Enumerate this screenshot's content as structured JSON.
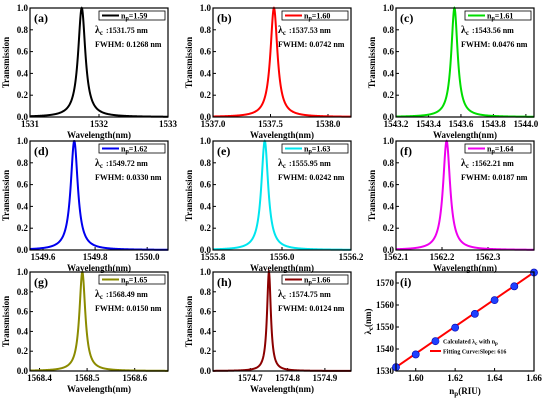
{
  "chart_data": [
    {
      "type": "line",
      "label": "(a)",
      "color": "#000000",
      "n_label": "n",
      "n_sub": "p",
      "n_value": "=1.59",
      "lambda_sym": "λ",
      "lambda_sub": "c",
      "lambda_value": ":1531.75 nm",
      "fwhm_text": "FWHM: 0.1268 nm",
      "center": 1531.75,
      "fwhm": 0.1268,
      "xlim": [
        1531,
        1533
      ],
      "ylim": [
        0,
        1.0
      ],
      "xticks": [
        1531,
        1532,
        1533
      ],
      "xtick_labels": [
        "1531",
        "1532",
        "1533"
      ],
      "yticks": [
        0,
        0.2,
        0.4,
        0.6,
        0.8,
        1.0
      ],
      "ytick_labels": [
        "0.0",
        "0.2",
        "0.4",
        "0.6",
        "0.8",
        "1.0"
      ],
      "xlabel": "Wavelength(nm)",
      "ylabel": "Transmission"
    },
    {
      "type": "line",
      "label": "(b)",
      "color": "#ff0000",
      "n_label": "n",
      "n_sub": "p",
      "n_value": "=1.60",
      "lambda_sym": "λ",
      "lambda_sub": "c",
      "lambda_value": ":1537.53 nm",
      "fwhm_text": "FWHM: 0.0742 nm",
      "center": 1537.53,
      "fwhm": 0.0742,
      "xlim": [
        1537.0,
        1538.2
      ],
      "ylim": [
        0,
        1.0
      ],
      "xticks": [
        1537.0,
        1537.5,
        1538.0
      ],
      "xtick_labels": [
        "1537.0",
        "1537.5",
        "1538.0"
      ],
      "yticks": [
        0,
        0.2,
        0.4,
        0.6,
        0.8,
        1.0
      ],
      "ytick_labels": [
        "0.0",
        "0.2",
        "0.4",
        "0.6",
        "0.8",
        "1.0"
      ],
      "xlabel": "Wavelength(nm)",
      "ylabel": "Transmission"
    },
    {
      "type": "line",
      "label": "(c)",
      "color": "#00dd00",
      "n_label": "n",
      "n_sub": "p",
      "n_value": "=1.61",
      "lambda_sym": "λ",
      "lambda_sub": "c",
      "lambda_value": ":1543.56 nm",
      "fwhm_text": "FWHM: 0.0476 nm",
      "center": 1543.56,
      "fwhm": 0.0476,
      "xlim": [
        1543.2,
        1544.05
      ],
      "ylim": [
        0,
        1.0
      ],
      "xticks": [
        1543.2,
        1543.4,
        1543.6,
        1543.8,
        1544.0
      ],
      "xtick_labels": [
        "1543.2",
        "1543.4",
        "1543.6",
        "1543.8",
        "1544.0"
      ],
      "yticks": [
        0,
        0.2,
        0.4,
        0.6,
        0.8,
        1.0
      ],
      "ytick_labels": [
        "0.0",
        "0.2",
        "0.4",
        "0.6",
        "0.8",
        "1.0"
      ],
      "xlabel": "Wavelength(nm)",
      "ylabel": "Transmission"
    },
    {
      "type": "line",
      "label": "(d)",
      "color": "#0000ee",
      "n_label": "n",
      "n_sub": "p",
      "n_value": "=1.62",
      "lambda_sym": "λ",
      "lambda_sub": "c",
      "lambda_value": ":1549.72 nm",
      "fwhm_text": "FWHM: 0.0330 nm",
      "center": 1549.72,
      "fwhm": 0.033,
      "xlim": [
        1549.55,
        1550.08
      ],
      "ylim": [
        0,
        1.0
      ],
      "xticks": [
        1549.6,
        1549.8,
        1550.0
      ],
      "xtick_labels": [
        "1549.6",
        "1549.8",
        "1550.0"
      ],
      "yticks": [
        0,
        0.2,
        0.4,
        0.6,
        0.8,
        1.0
      ],
      "ytick_labels": [
        "0.0",
        "0.2",
        "0.4",
        "0.6",
        "0.8",
        "1.0"
      ],
      "xlabel": "Wavelength(nm)",
      "ylabel": "Transmission"
    },
    {
      "type": "line",
      "label": "(e)",
      "color": "#00e5ee",
      "n_label": "n",
      "n_sub": "p",
      "n_value": "=1.63",
      "lambda_sym": "λ",
      "lambda_sub": "c",
      "lambda_value": ":1555.95 nm",
      "fwhm_text": "FWHM: 0.0242 nm",
      "center": 1555.95,
      "fwhm": 0.0242,
      "xlim": [
        1555.8,
        1556.2
      ],
      "ylim": [
        0,
        1.0
      ],
      "xticks": [
        1555.8,
        1556.0,
        1556.2
      ],
      "xtick_labels": [
        "1555.8",
        "1556.0",
        "1556.2"
      ],
      "yticks": [
        0,
        0.2,
        0.4,
        0.6,
        0.8,
        1.0
      ],
      "ytick_labels": [
        "0.0",
        "0.2",
        "0.4",
        "0.6",
        "0.8",
        "1.0"
      ],
      "xlabel": "Wavelength(nm)",
      "ylabel": "Transmission"
    },
    {
      "type": "line",
      "label": "(f)",
      "color": "#ee00ee",
      "n_label": "n",
      "n_sub": "p",
      "n_value": "=1.64",
      "lambda_sym": "λ",
      "lambda_sub": "c",
      "lambda_value": ":1562.21 nm",
      "fwhm_text": "FWHM: 0.0187 nm",
      "center": 1562.21,
      "fwhm": 0.0187,
      "xlim": [
        1562.1,
        1562.4
      ],
      "ylim": [
        0,
        1.0
      ],
      "xticks": [
        1562.1,
        1562.2,
        1562.3
      ],
      "xtick_labels": [
        "1562.1",
        "1562.2",
        "1562.3"
      ],
      "yticks": [
        0,
        0.2,
        0.4,
        0.6,
        0.8,
        1.0
      ],
      "ytick_labels": [
        "0.0",
        "0.2",
        "0.4",
        "0.6",
        "0.8",
        "1.0"
      ],
      "xlabel": "Wavelength(nm)",
      "ylabel": "Transmission"
    },
    {
      "type": "line",
      "label": "(g)",
      "color": "#8b8b00",
      "n_label": "n",
      "n_sub": "p",
      "n_value": "=1.65",
      "lambda_sym": "λ",
      "lambda_sub": "c",
      "lambda_value": ":1568.49 nm",
      "fwhm_text": "FWHM: 0.0150 nm",
      "center": 1568.49,
      "fwhm": 0.015,
      "xlim": [
        1568.38,
        1568.67
      ],
      "ylim": [
        0,
        1.0
      ],
      "xticks": [
        1568.4,
        1568.5,
        1568.6
      ],
      "xtick_labels": [
        "1568.4",
        "1568.5",
        "1568.6"
      ],
      "yticks": [
        0,
        0.2,
        0.4,
        0.6,
        0.8,
        1.0
      ],
      "ytick_labels": [
        "0.0",
        "0.2",
        "0.4",
        "0.6",
        "0.8",
        "1.0"
      ],
      "xlabel": "Wavelength(nm)",
      "ylabel": "Transmission"
    },
    {
      "type": "line",
      "label": "(h)",
      "color": "#8b0000",
      "n_label": "n",
      "n_sub": "p",
      "n_value": "=1.66",
      "lambda_sym": "λ",
      "lambda_sub": "c",
      "lambda_value": ":1574.75 nm",
      "fwhm_text": "FWHM: 0.0124 nm",
      "center": 1574.75,
      "fwhm": 0.0124,
      "xlim": [
        1574.6,
        1574.97
      ],
      "ylim": [
        0,
        1.0
      ],
      "xticks": [
        1574.7,
        1574.8,
        1574.9
      ],
      "xtick_labels": [
        "1574.7",
        "1574.8",
        "1574.9"
      ],
      "yticks": [
        0,
        0.2,
        0.4,
        0.6,
        0.8,
        1.0
      ],
      "ytick_labels": [
        "0.0",
        "0.2",
        "0.4",
        "0.6",
        "0.8",
        "1.0"
      ],
      "xlabel": "Wavelength(nm)",
      "ylabel": "Transmission"
    },
    {
      "type": "scatter",
      "label": "(i)",
      "point_color": "#1f3fff",
      "line_color": "#ff0000",
      "x": [
        1.59,
        1.6,
        1.61,
        1.62,
        1.63,
        1.64,
        1.65,
        1.66
      ],
      "y": [
        1531.75,
        1537.53,
        1543.56,
        1549.72,
        1555.95,
        1562.21,
        1568.49,
        1574.75
      ],
      "fit_slope": 616,
      "xlim": [
        1.59,
        1.66
      ],
      "ylim": [
        1530,
        1575
      ],
      "xticks": [
        1.6,
        1.62,
        1.64,
        1.66
      ],
      "xtick_labels": [
        "1.60",
        "1.62",
        "1.64",
        "1.66"
      ],
      "yticks": [
        1530,
        1540,
        1550,
        1560,
        1570
      ],
      "ytick_labels": [
        "1530",
        "1540",
        "1550",
        "1560",
        "1570"
      ],
      "xlabel": "n",
      "xlabel_sub": "p",
      "xlabel_suffix": "(RIU)",
      "ylabel": "λ",
      "ylabel_sub": "c",
      "ylabel_suffix": "(nm)",
      "legend_points": "Calculated λ",
      "legend_points_sub": "c",
      "legend_points_suffix": " with n",
      "legend_points_sub2": "p",
      "legend_fit": "Fitting Curve:Slope: 616"
    }
  ]
}
